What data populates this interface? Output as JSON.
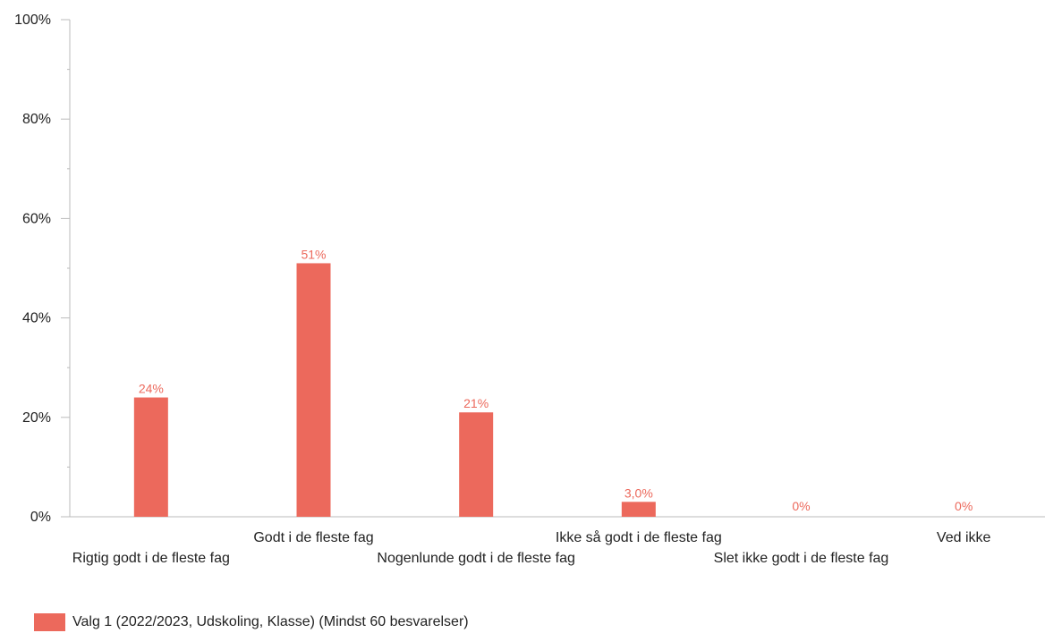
{
  "chart_data": {
    "type": "bar",
    "categories": [
      "Rigtig godt i de fleste fag",
      "Godt i de fleste fag",
      "Nogenlunde godt i de fleste fag",
      "Ikke så godt i de fleste fag",
      "Slet ikke godt i de fleste fag",
      "Ved ikke"
    ],
    "series": [
      {
        "name": "Valg 1 (2022/2023, Udskoling, Klasse) (Mindst 60 besvarelser)",
        "values": [
          24,
          51,
          21,
          3.0,
          0,
          0
        ],
        "labels": [
          "24%",
          "51%",
          "21%",
          "3,0%",
          "0%",
          "0%"
        ],
        "color": "#EC695C"
      }
    ],
    "ylim": [
      0,
      100
    ],
    "yticks": [
      0,
      20,
      40,
      60,
      80,
      100
    ],
    "ytick_labels": [
      "0%",
      "20%",
      "40%",
      "60%",
      "80%",
      "100%"
    ],
    "grid": false,
    "legend_position": "bottom-left",
    "xlabel": "",
    "ylabel": "",
    "title": ""
  },
  "colors": {
    "bar": "#EC695C",
    "axis": "#bbbbbb",
    "text": "#222222"
  }
}
